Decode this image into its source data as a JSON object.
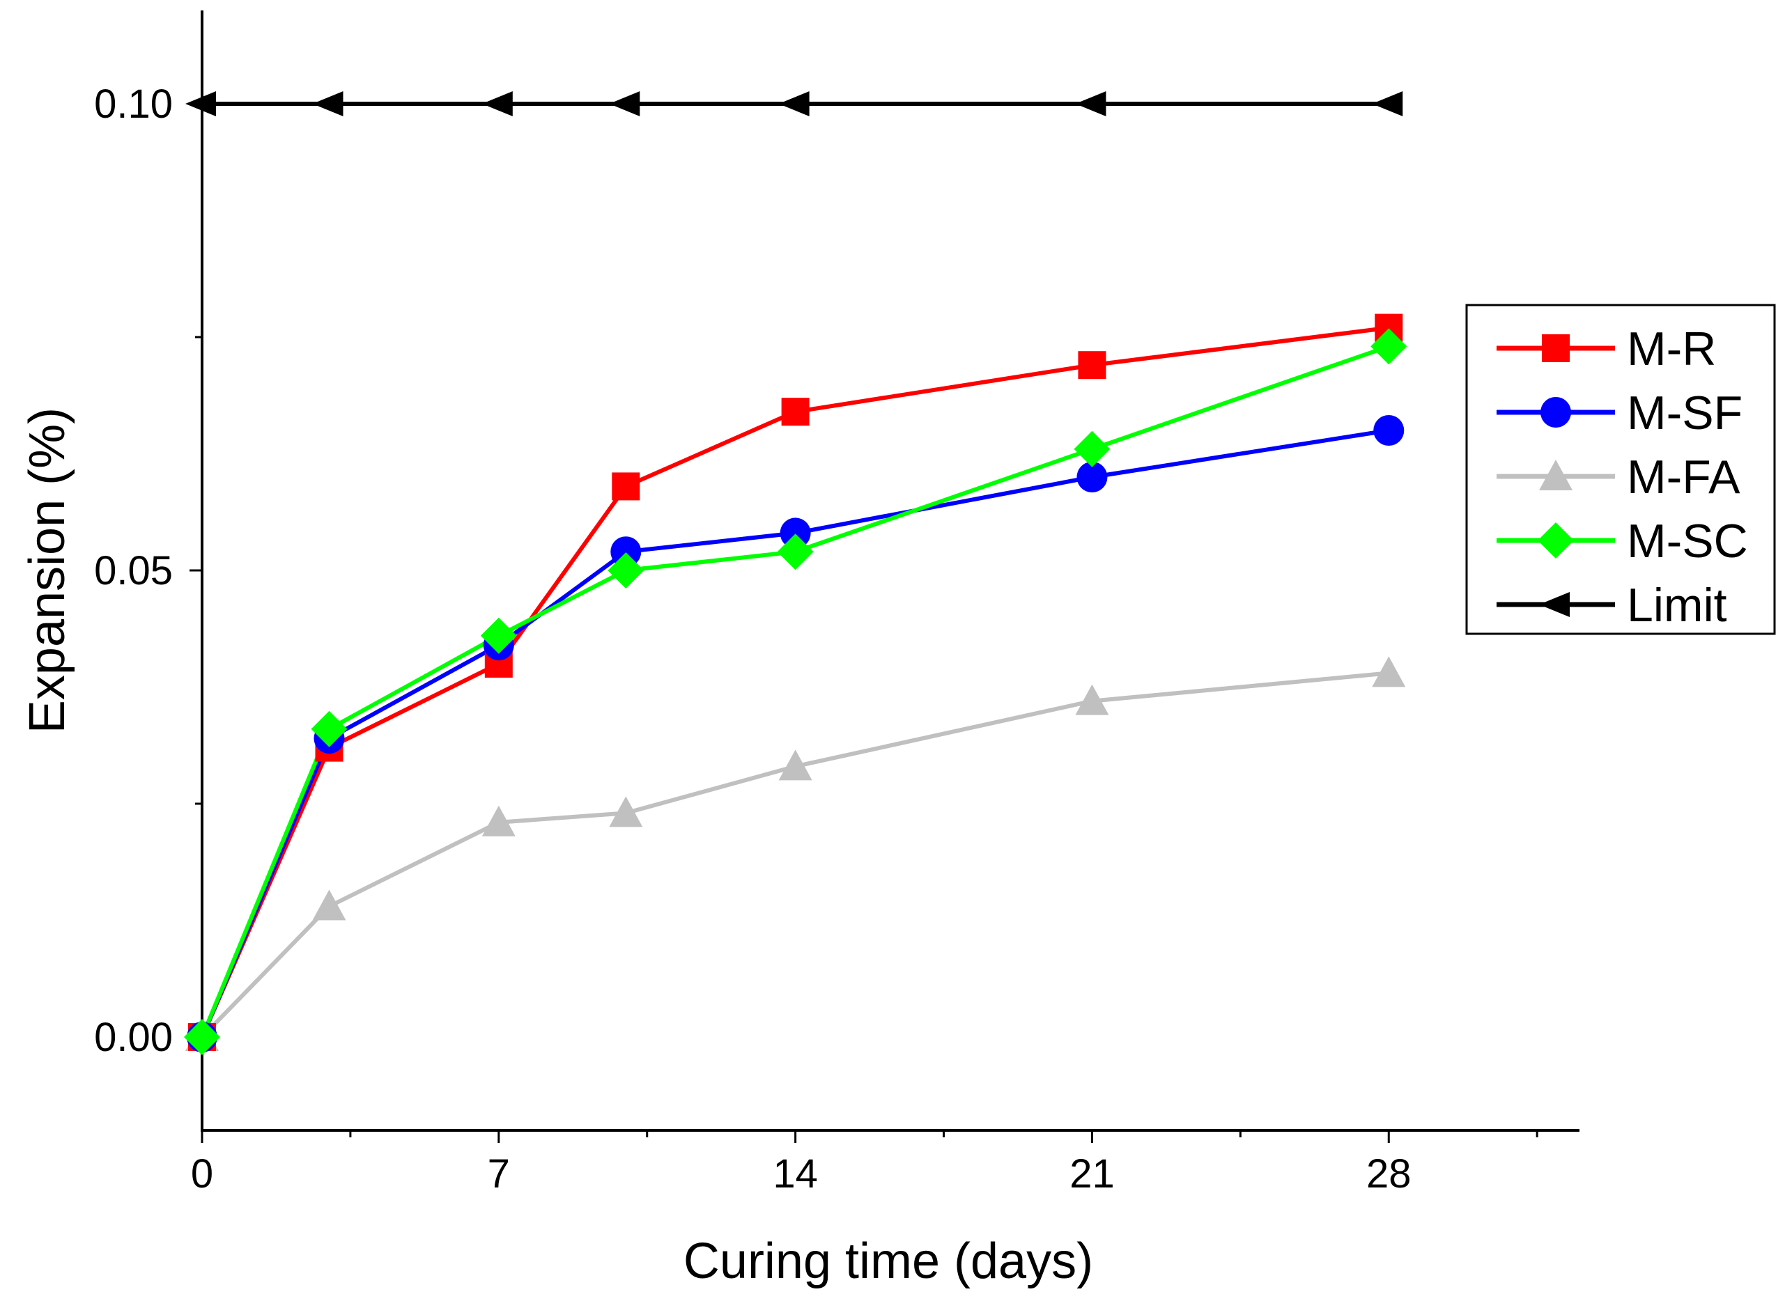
{
  "chart_data": {
    "type": "line",
    "title": "",
    "xlabel": "Curing time (days)",
    "ylabel": "Expansion (%)",
    "xlim": [
      0,
      32.5
    ],
    "ylim": [
      -0.01,
      0.11
    ],
    "x_ticks": [
      0,
      7,
      14,
      21,
      28
    ],
    "x_tick_labels": [
      "0",
      "7",
      "14",
      "21",
      "28"
    ],
    "y_ticks": [
      0.0,
      0.05,
      0.1
    ],
    "y_tick_labels": [
      "0.00",
      "0.05",
      "0.10"
    ],
    "legend_position": "center-right",
    "series": [
      {
        "name": "M-R",
        "color": "#ff0000",
        "marker": "square",
        "x": [
          0,
          3,
          7,
          10,
          14,
          21,
          28
        ],
        "values": [
          0.0,
          0.031,
          0.04,
          0.059,
          0.067,
          0.072,
          0.076
        ]
      },
      {
        "name": "M-SF",
        "color": "#0000ff",
        "marker": "circle",
        "x": [
          0,
          3,
          7,
          10,
          14,
          21,
          28
        ],
        "values": [
          0.0,
          0.032,
          0.042,
          0.052,
          0.054,
          0.06,
          0.065
        ]
      },
      {
        "name": "M-FA",
        "color": "#c0c0c0",
        "marker": "triangle-up",
        "x": [
          0,
          3,
          7,
          10,
          14,
          21,
          28
        ],
        "values": [
          0.0,
          0.014,
          0.023,
          0.024,
          0.029,
          0.036,
          0.039
        ]
      },
      {
        "name": "M-SC",
        "color": "#00ff00",
        "marker": "diamond",
        "x": [
          0,
          3,
          7,
          10,
          14,
          21,
          28
        ],
        "values": [
          0.0,
          0.033,
          0.043,
          0.05,
          0.052,
          0.063,
          0.074
        ]
      },
      {
        "name": "Limit",
        "color": "#000000",
        "marker": "triangle-left",
        "x": [
          0,
          3,
          7,
          10,
          14,
          21,
          28
        ],
        "values": [
          0.1,
          0.1,
          0.1,
          0.1,
          0.1,
          0.1,
          0.1
        ]
      }
    ]
  }
}
